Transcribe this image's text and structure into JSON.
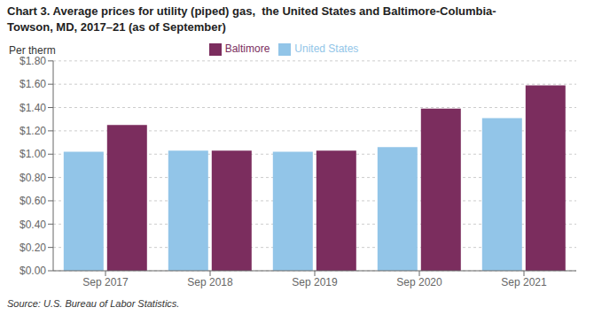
{
  "chart_data": {
    "type": "bar",
    "title": "Chart 3. Average prices for utility (piped) gas,  the United States and Baltimore-Columbia-\nTowson, MD, 2017–21 (as of September)",
    "ylabel": "Per therm",
    "source": "Source: U.S. Bureau of Labor Statistics.",
    "categories": [
      "Sep 2017",
      "Sep 2018",
      "Sep 2019",
      "Sep 2020",
      "Sep 2021"
    ],
    "series": [
      {
        "name": "United States",
        "color": "#92C5E8",
        "values": [
          1.02,
          1.03,
          1.02,
          1.06,
          1.31
        ]
      },
      {
        "name": "Baltimore",
        "color": "#7B2D5E",
        "values": [
          1.25,
          1.03,
          1.03,
          1.39,
          1.59
        ]
      }
    ],
    "ylim": [
      0.0,
      1.8
    ],
    "yticks": [
      {
        "value": 0.0,
        "label": "$0.00"
      },
      {
        "value": 0.2,
        "label": "$0.20"
      },
      {
        "value": 0.4,
        "label": "$0.40"
      },
      {
        "value": 0.6,
        "label": "$0.60"
      },
      {
        "value": 0.8,
        "label": "$0.80"
      },
      {
        "value": 1.0,
        "label": "$1.00"
      },
      {
        "value": 1.2,
        "label": "$1.20"
      },
      {
        "value": 1.4,
        "label": "$1.40"
      },
      {
        "value": 1.6,
        "label": "$1.60"
      },
      {
        "value": 1.8,
        "label": "$1.80"
      }
    ],
    "grid": true,
    "legend": "top"
  }
}
